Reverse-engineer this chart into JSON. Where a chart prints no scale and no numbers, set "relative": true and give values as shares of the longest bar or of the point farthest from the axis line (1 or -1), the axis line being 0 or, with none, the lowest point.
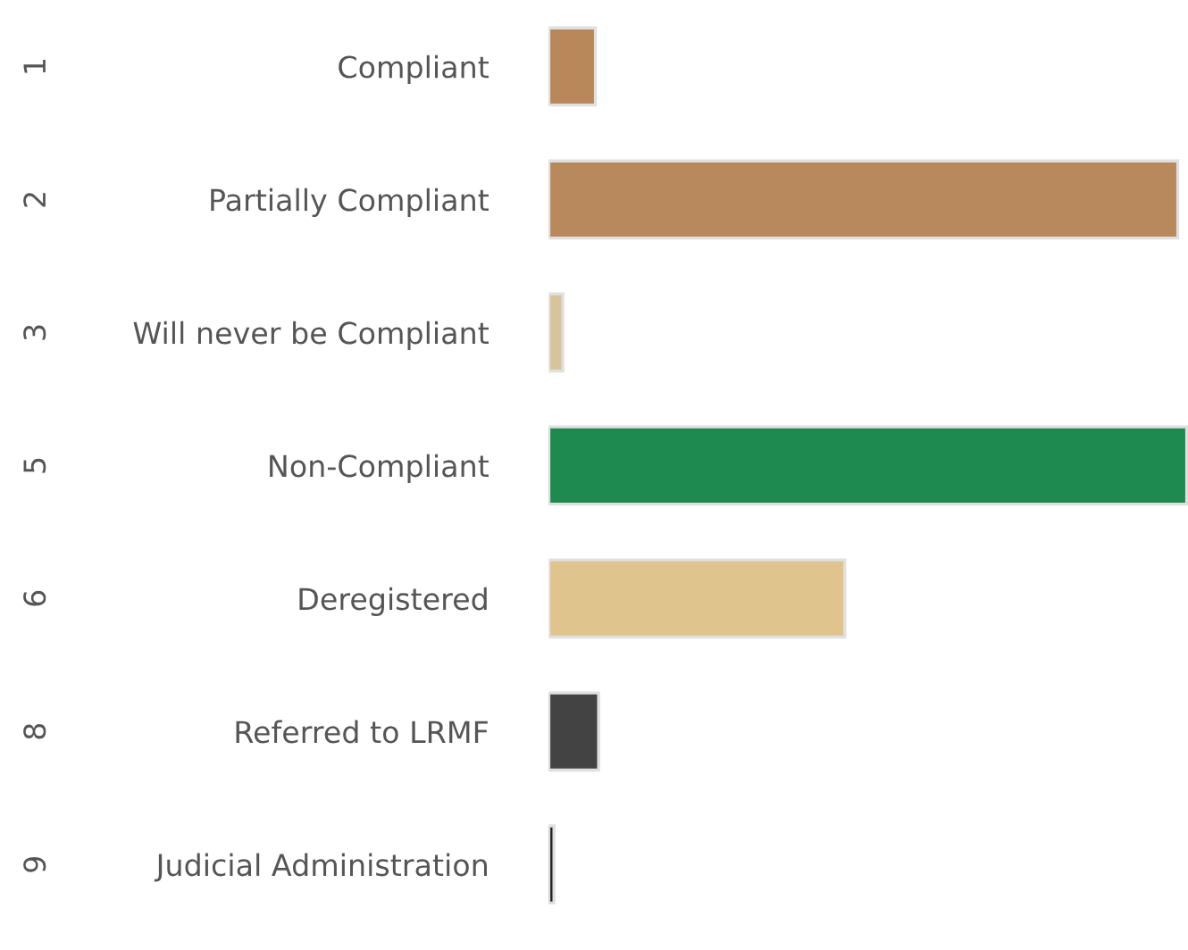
{
  "chart_data": {
    "type": "bar",
    "orientation": "horizontal",
    "relative": true,
    "categories": [
      "Compliant",
      "Partially Compliant",
      "Will never be Compliant",
      "Non-Compliant",
      "Deregistered",
      "Referred to LRMF",
      "Judicial Administration"
    ],
    "values": [
      0.073,
      0.986,
      0.022,
      1,
      0.464,
      0.078,
      0.008
    ],
    "colors": [
      "#b8875a",
      "#b8895c",
      "#d8c49c",
      "#1f8a4f",
      "#dfc48e",
      "#434343",
      "#222222"
    ],
    "annotations": [
      "1",
      "2",
      "3",
      "5",
      "6",
      "8",
      "9"
    ],
    "grid": false,
    "legend": false
  }
}
